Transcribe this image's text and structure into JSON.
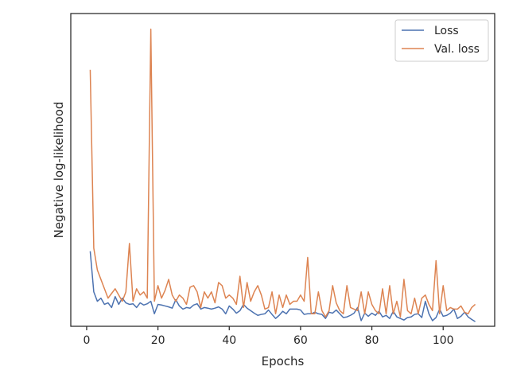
{
  "chart_data": {
    "type": "line",
    "xlabel": "Epochs",
    "ylabel": "Negative log-likelihood",
    "xlim": [
      -4.45,
      114.45
    ],
    "xticks": [
      0,
      20,
      40,
      60,
      80,
      100
    ],
    "xtick_labels": [
      "0",
      "20",
      "40",
      "60",
      "80",
      "100"
    ],
    "ylim": [
      0.0,
      1.0
    ],
    "y_ticks_shown": false,
    "grid": false,
    "legend": "top-right",
    "colors": {
      "Loss": "#4c72b0",
      "Val. loss": "#dd8452"
    },
    "x": [
      1,
      2,
      3,
      4,
      5,
      6,
      7,
      8,
      9,
      10,
      11,
      12,
      13,
      14,
      15,
      16,
      17,
      18,
      19,
      20,
      21,
      22,
      23,
      24,
      25,
      26,
      27,
      28,
      29,
      30,
      31,
      32,
      33,
      34,
      35,
      36,
      37,
      38,
      39,
      40,
      41,
      42,
      43,
      44,
      45,
      46,
      47,
      48,
      49,
      50,
      51,
      52,
      53,
      54,
      55,
      56,
      57,
      58,
      59,
      60,
      61,
      62,
      63,
      64,
      65,
      66,
      67,
      68,
      69,
      70,
      71,
      72,
      73,
      74,
      75,
      76,
      77,
      78,
      79,
      80,
      81,
      82,
      83,
      84,
      85,
      86,
      87,
      88,
      89,
      90,
      91,
      92,
      93,
      94,
      95,
      96,
      97,
      98,
      99,
      100,
      101,
      102,
      103,
      104,
      105,
      106,
      107,
      108,
      109
    ],
    "series": [
      {
        "name": "Loss",
        "values": [
          0.24,
          0.11,
          0.08,
          0.09,
          0.07,
          0.075,
          0.06,
          0.095,
          0.07,
          0.09,
          0.075,
          0.07,
          0.072,
          0.06,
          0.075,
          0.068,
          0.072,
          0.08,
          0.04,
          0.07,
          0.068,
          0.065,
          0.062,
          0.058,
          0.085,
          0.065,
          0.055,
          0.06,
          0.058,
          0.068,
          0.072,
          0.055,
          0.06,
          0.058,
          0.055,
          0.058,
          0.062,
          0.055,
          0.04,
          0.065,
          0.055,
          0.042,
          0.05,
          0.07,
          0.058,
          0.05,
          0.042,
          0.035,
          0.038,
          0.04,
          0.052,
          0.038,
          0.025,
          0.035,
          0.048,
          0.04,
          0.055,
          0.055,
          0.055,
          0.052,
          0.038,
          0.04,
          0.04,
          0.045,
          0.04,
          0.038,
          0.025,
          0.045,
          0.042,
          0.052,
          0.04,
          0.028,
          0.03,
          0.035,
          0.042,
          0.06,
          0.018,
          0.042,
          0.032,
          0.042,
          0.035,
          0.048,
          0.03,
          0.035,
          0.025,
          0.048,
          0.03,
          0.025,
          0.02,
          0.028,
          0.03,
          0.038,
          0.04,
          0.028,
          0.08,
          0.04,
          0.018,
          0.028,
          0.055,
          0.032,
          0.035,
          0.042,
          0.055,
          0.025,
          0.032,
          0.045,
          0.03,
          0.022,
          0.015
        ]
      },
      {
        "name": "Val. loss",
        "values": [
          0.82,
          0.25,
          0.18,
          0.15,
          0.12,
          0.09,
          0.105,
          0.12,
          0.1,
          0.08,
          0.11,
          0.265,
          0.08,
          0.12,
          0.1,
          0.11,
          0.09,
          0.95,
          0.08,
          0.13,
          0.09,
          0.115,
          0.15,
          0.1,
          0.08,
          0.1,
          0.09,
          0.07,
          0.125,
          0.13,
          0.11,
          0.06,
          0.11,
          0.09,
          0.11,
          0.075,
          0.14,
          0.13,
          0.09,
          0.1,
          0.09,
          0.07,
          0.16,
          0.06,
          0.14,
          0.08,
          0.11,
          0.13,
          0.1,
          0.055,
          0.06,
          0.11,
          0.04,
          0.1,
          0.06,
          0.1,
          0.07,
          0.08,
          0.08,
          0.1,
          0.08,
          0.22,
          0.04,
          0.04,
          0.11,
          0.05,
          0.03,
          0.05,
          0.13,
          0.075,
          0.05,
          0.04,
          0.13,
          0.06,
          0.055,
          0.05,
          0.11,
          0.04,
          0.11,
          0.07,
          0.05,
          0.04,
          0.12,
          0.04,
          0.13,
          0.04,
          0.08,
          0.03,
          0.15,
          0.05,
          0.04,
          0.09,
          0.04,
          0.09,
          0.1,
          0.07,
          0.05,
          0.21,
          0.04,
          0.13,
          0.05,
          0.06,
          0.055,
          0.055,
          0.065,
          0.045,
          0.04,
          0.06,
          0.07
        ]
      }
    ]
  }
}
